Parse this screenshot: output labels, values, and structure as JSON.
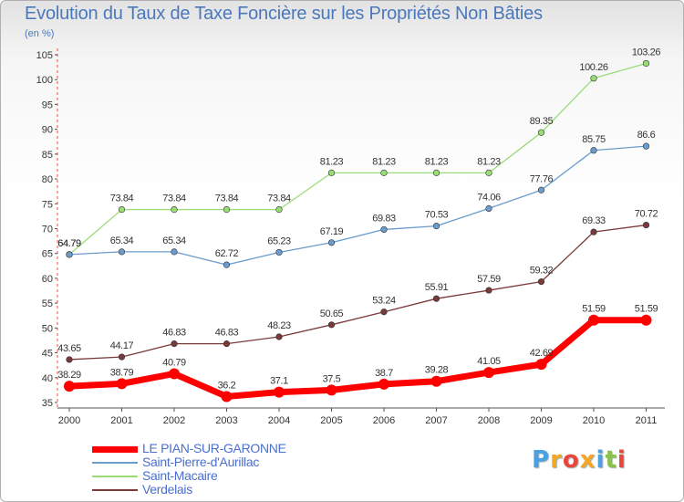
{
  "chart_data": {
    "type": "line",
    "title": "Evolution du Taux de Taxe Foncière sur les Propriétés Non Bâties",
    "subtitle": "(en %)",
    "xlabel": "",
    "ylabel": "",
    "x": [
      "2000",
      "2001",
      "2002",
      "2003",
      "2004",
      "2005",
      "2006",
      "2007",
      "2008",
      "2009",
      "2010",
      "2011"
    ],
    "ylim": [
      35,
      105
    ],
    "yticks": [
      "35",
      "40",
      "45",
      "50",
      "55",
      "60",
      "65",
      "70",
      "75",
      "80",
      "85",
      "90",
      "95",
      "100",
      "105"
    ],
    "grid": false,
    "legend_position": "bottom-left",
    "series": [
      {
        "name": "LE PIAN-SUR-GARONNE",
        "color": "#ff0000",
        "values": [
          38.29,
          38.79,
          40.79,
          36.2,
          37.1,
          37.5,
          38.7,
          39.28,
          41.05,
          42.69,
          51.59,
          51.59
        ],
        "labels": [
          "38.29",
          "38.79",
          "40.79",
          "36.2",
          "37.1",
          "37.5",
          "38.7",
          "39.28",
          "41.05",
          "42.69",
          "51.59",
          "51.59"
        ]
      },
      {
        "name": "Saint-Pierre-d'Aurillac",
        "color": "#6b9ccc",
        "values": [
          64.79,
          65.34,
          65.34,
          62.72,
          65.23,
          67.19,
          69.83,
          70.53,
          74.06,
          77.76,
          85.75,
          86.6
        ],
        "labels": [
          "64.79",
          "65.34",
          "65.34",
          "62.72",
          "65.23",
          "67.19",
          "69.83",
          "70.53",
          "74.06",
          "77.76",
          "85.75",
          "86.6"
        ]
      },
      {
        "name": "Saint-Macaire",
        "color": "#99dd77",
        "values": [
          64.79,
          73.84,
          73.84,
          73.84,
          73.84,
          81.23,
          81.23,
          81.23,
          81.23,
          89.35,
          100.26,
          103.26
        ],
        "labels": [
          "64.79",
          "73.84",
          "73.84",
          "73.84",
          "73.84",
          "81.23",
          "81.23",
          "81.23",
          "81.23",
          "89.35",
          "100.26",
          "103.26"
        ]
      },
      {
        "name": "Verdelais",
        "color": "#7a3a3a",
        "values": [
          43.65,
          44.17,
          46.83,
          46.83,
          48.23,
          50.65,
          53.24,
          55.91,
          57.59,
          59.32,
          69.33,
          70.72
        ],
        "labels": [
          "43.65",
          "44.17",
          "46.83",
          "46.83",
          "48.23",
          "50.65",
          "53.24",
          "55.91",
          "57.59",
          "59.32",
          "69.33",
          "70.72"
        ]
      }
    ]
  },
  "logo": {
    "text": "Proxiti",
    "colors": [
      "#4aa0e0",
      "#f5a623",
      "#e8463a",
      "#f5a623",
      "#4aa0e0",
      "#8bc34a",
      "#e8463a"
    ]
  }
}
